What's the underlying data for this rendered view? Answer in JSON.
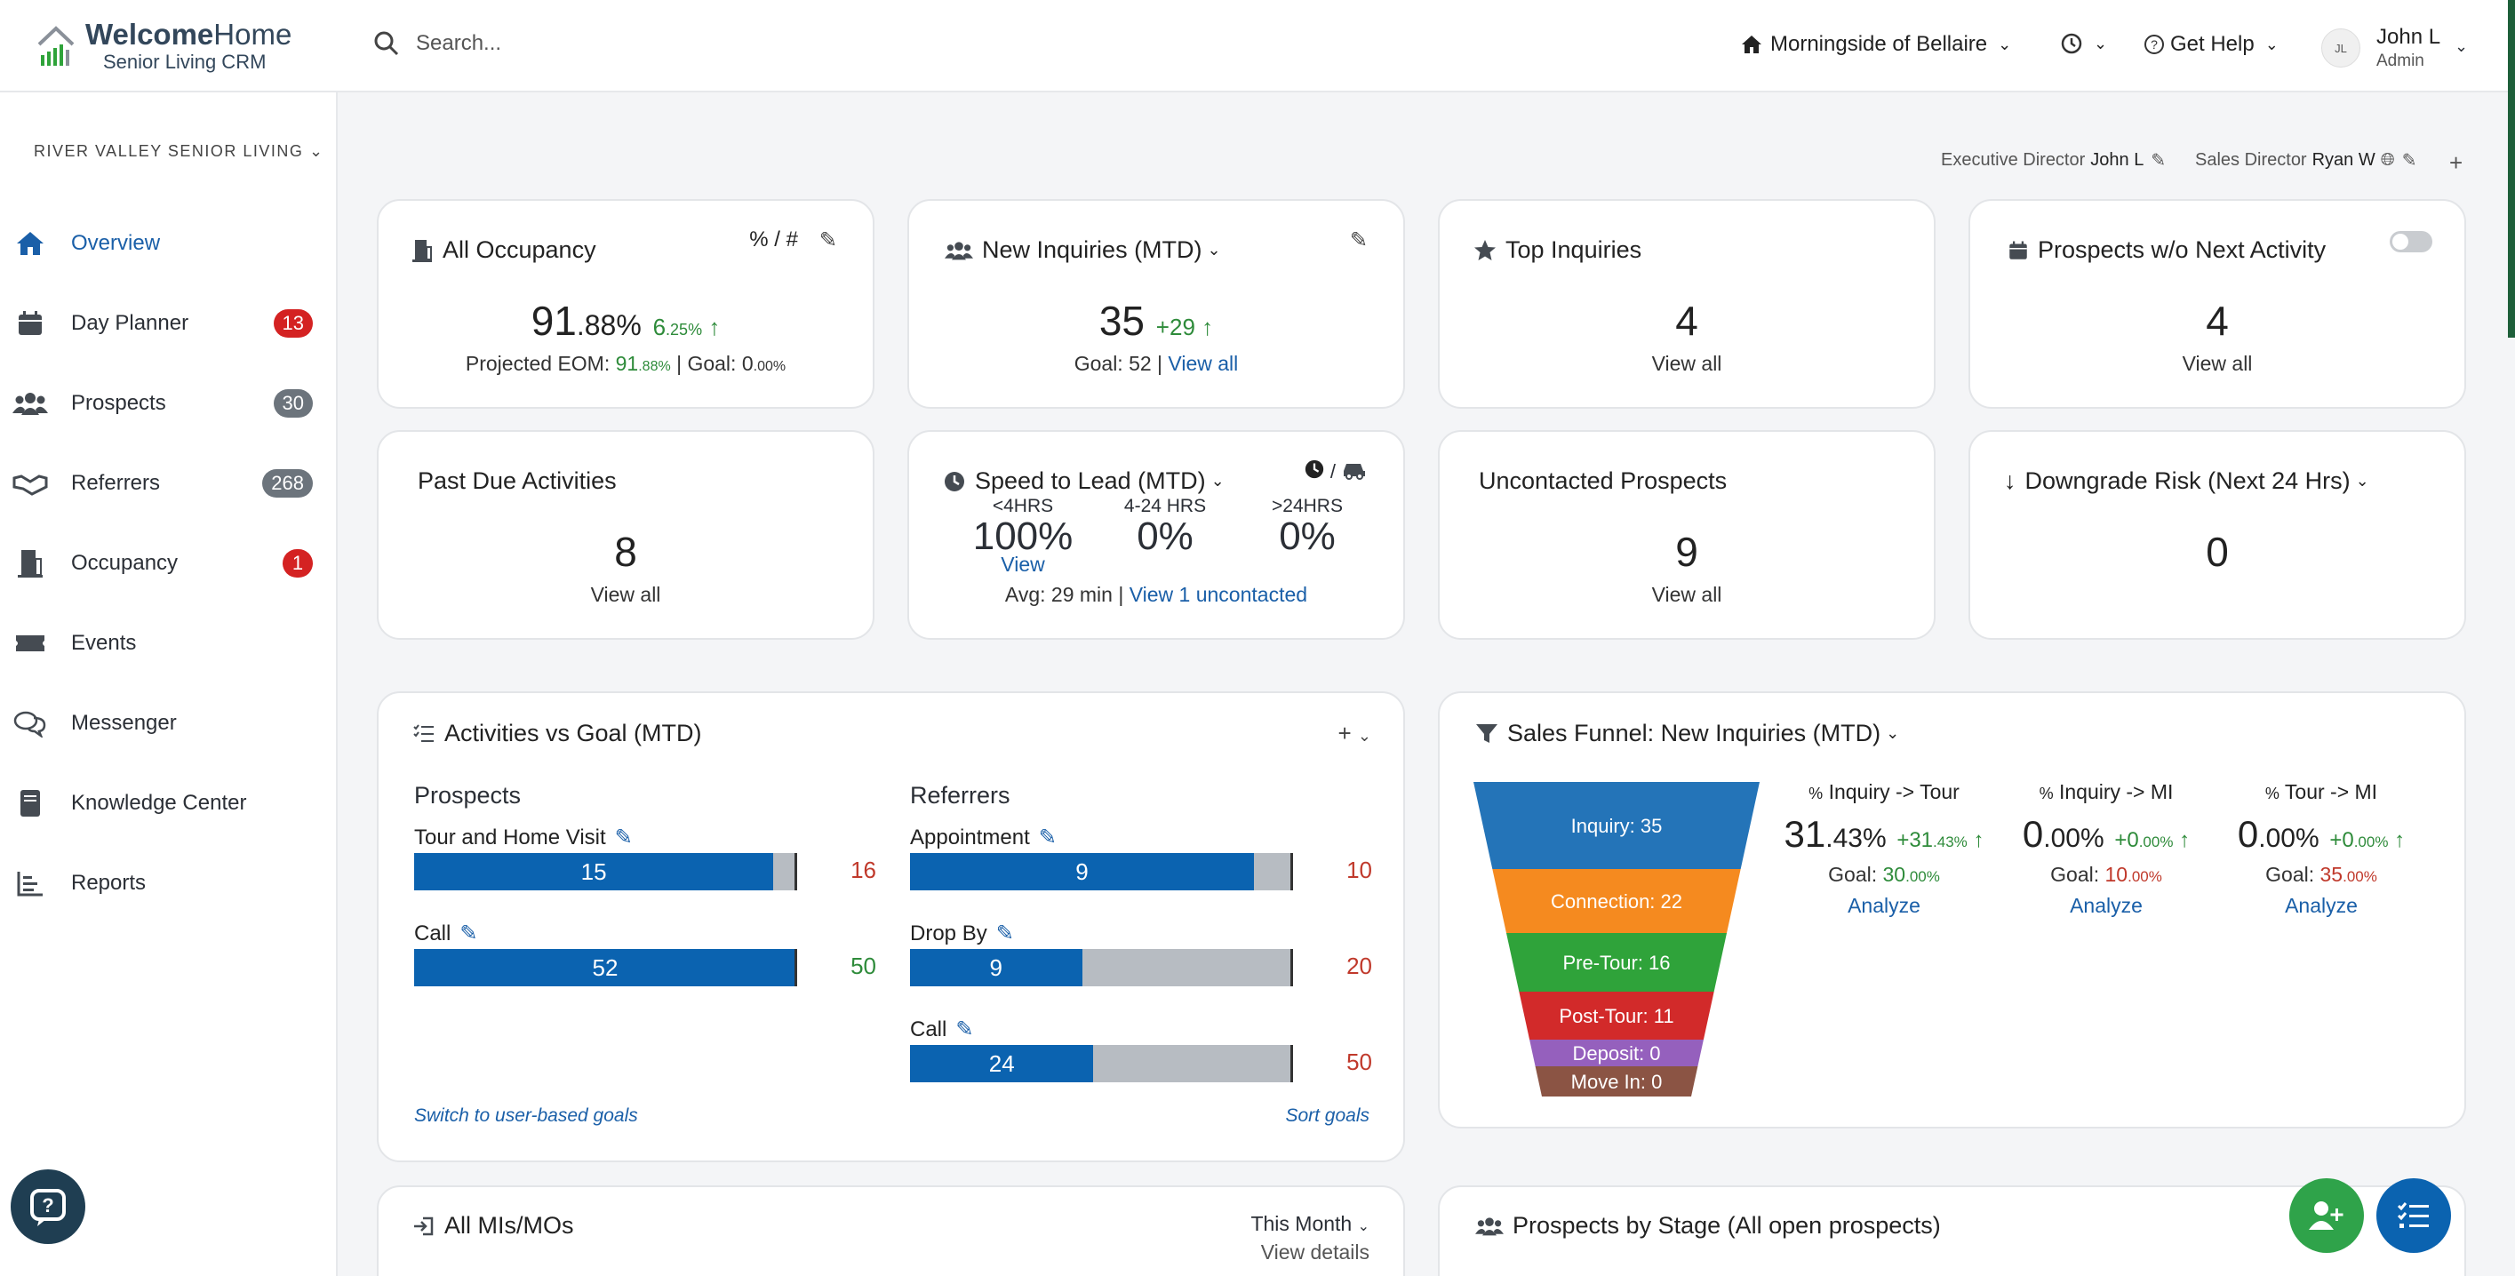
{
  "header": {
    "logo_bold": "Welcome",
    "logo_light": "Home",
    "logo_sub": "Senior Living CRM",
    "search_placeholder": "Search...",
    "community": "Morningside of Bellaire",
    "help": "Get Help",
    "user_initials": "JL",
    "user_name": "John L",
    "user_role": "Admin"
  },
  "sidebar": {
    "org": "RIVER VALLEY SENIOR LIVING",
    "items": [
      {
        "label": "Overview",
        "icon": "home-icon",
        "badge": ""
      },
      {
        "label": "Day Planner",
        "icon": "calendar-icon",
        "badge": "13"
      },
      {
        "label": "Prospects",
        "icon": "people-icon",
        "badge": "30"
      },
      {
        "label": "Referrers",
        "icon": "handshake-icon",
        "badge": "268"
      },
      {
        "label": "Occupancy",
        "icon": "door-icon",
        "badge": "1"
      },
      {
        "label": "Events",
        "icon": "ticket-icon",
        "badge": ""
      },
      {
        "label": "Messenger",
        "icon": "chat-icon",
        "badge": ""
      },
      {
        "label": "Knowledge Center",
        "icon": "book-icon",
        "badge": ""
      },
      {
        "label": "Reports",
        "icon": "chart-icon",
        "badge": ""
      }
    ]
  },
  "directors": {
    "exec_label": "Executive Director",
    "exec_name": "John L",
    "sales_label": "Sales Director",
    "sales_name": "Ryan W"
  },
  "cards": {
    "occupancy": {
      "title": "All Occupancy",
      "toggle": "% / #",
      "value_main": "91",
      "value_dec": ".88%",
      "delta": "6",
      "delta_dec": ".25%",
      "projected_label": "Projected EOM:",
      "projected_main": "91",
      "projected_dec": ".88%",
      "goal_label": "Goal:",
      "goal_main": "0",
      "goal_dec": ".00%"
    },
    "new_inquiries": {
      "title": "New Inquiries (MTD)",
      "value": "35",
      "delta": "+29",
      "goal": "Goal: 52 |",
      "link": "View all"
    },
    "top_inquiries": {
      "title": "Top Inquiries",
      "value": "4",
      "link": "View all"
    },
    "prospects_no_activity": {
      "title": "Prospects w/o Next Activity",
      "value": "4",
      "link": "View all"
    },
    "past_due": {
      "title": "Past Due Activities",
      "value": "8",
      "link": "View all"
    },
    "speed_to_lead": {
      "title": "Speed to Lead (MTD)",
      "cols": [
        {
          "label": "<4HRS",
          "value": "100%"
        },
        {
          "label": "4-24 HRS",
          "value": "0%"
        },
        {
          "label": ">24HRS",
          "value": "0%"
        }
      ],
      "view": "View",
      "avg": "Avg: 29 min |",
      "uncontacted_link": "View 1 uncontacted"
    },
    "uncontacted": {
      "title": "Uncontacted Prospects",
      "value": "9",
      "link": "View all"
    },
    "downgrade": {
      "title": "Downgrade Risk (Next 24 Hrs)",
      "value": "0"
    }
  },
  "activities": {
    "title": "Activities vs Goal (MTD)",
    "prospects_heading": "Prospects",
    "referrers_heading": "Referrers",
    "prospects": [
      {
        "label": "Tour and Home Visit",
        "value": "15",
        "goal": "16",
        "fill": 0.94,
        "goal_color": "#c0392b"
      },
      {
        "label": "Call",
        "value": "52",
        "goal": "50",
        "fill": 1.0,
        "goal_color": "#2e8b3a"
      }
    ],
    "referrers": [
      {
        "label": "Appointment",
        "value": "9",
        "goal": "10",
        "fill": 0.9,
        "goal_color": "#c0392b"
      },
      {
        "label": "Drop By",
        "value": "9",
        "goal": "20",
        "fill": 0.45,
        "goal_color": "#c0392b"
      },
      {
        "label": "Call",
        "value": "24",
        "goal": "50",
        "fill": 0.48,
        "goal_color": "#c0392b"
      }
    ],
    "switch_link": "Switch to user-based goals",
    "sort_link": "Sort goals"
  },
  "funnel": {
    "title": "Sales Funnel: New Inquiries (MTD)",
    "stages": [
      {
        "label": "Inquiry: 35",
        "color": "#2474b8"
      },
      {
        "label": "Connection: 22",
        "color": "#f58a1f"
      },
      {
        "label": "Pre-Tour: 16",
        "color": "#2fa33a"
      },
      {
        "label": "Post-Tour: 11",
        "color": "#d22a2a"
      },
      {
        "label": "Deposit: 0",
        "color": "#9560bd"
      },
      {
        "label": "Move In: 0",
        "color": "#8b5444"
      }
    ],
    "metrics": [
      {
        "header": "Inquiry -> Tour",
        "value_main": "31",
        "value_dec": ".43%",
        "delta_main": "+31",
        "delta_dec": ".43%",
        "goal_label": "Goal:",
        "goal_main": "30",
        "goal_dec": ".00%",
        "goal_color": "#2e8b3a",
        "link": "Analyze"
      },
      {
        "header": "Inquiry -> MI",
        "value_main": "0",
        "value_dec": ".00%",
        "delta_main": "+0",
        "delta_dec": ".00%",
        "goal_label": "Goal:",
        "goal_main": "10",
        "goal_dec": ".00%",
        "goal_color": "#c0392b",
        "link": "Analyze"
      },
      {
        "header": "Tour -> MI",
        "value_main": "0",
        "value_dec": ".00%",
        "delta_main": "+0",
        "delta_dec": ".00%",
        "goal_label": "Goal:",
        "goal_main": "35",
        "goal_dec": ".00%",
        "goal_color": "#c0392b",
        "link": "Analyze"
      }
    ]
  },
  "mis": {
    "title": "All MIs/MOs",
    "period": "This Month",
    "details": "View details"
  },
  "stages": {
    "title": "Prospects by Stage (All open prospects)"
  }
}
